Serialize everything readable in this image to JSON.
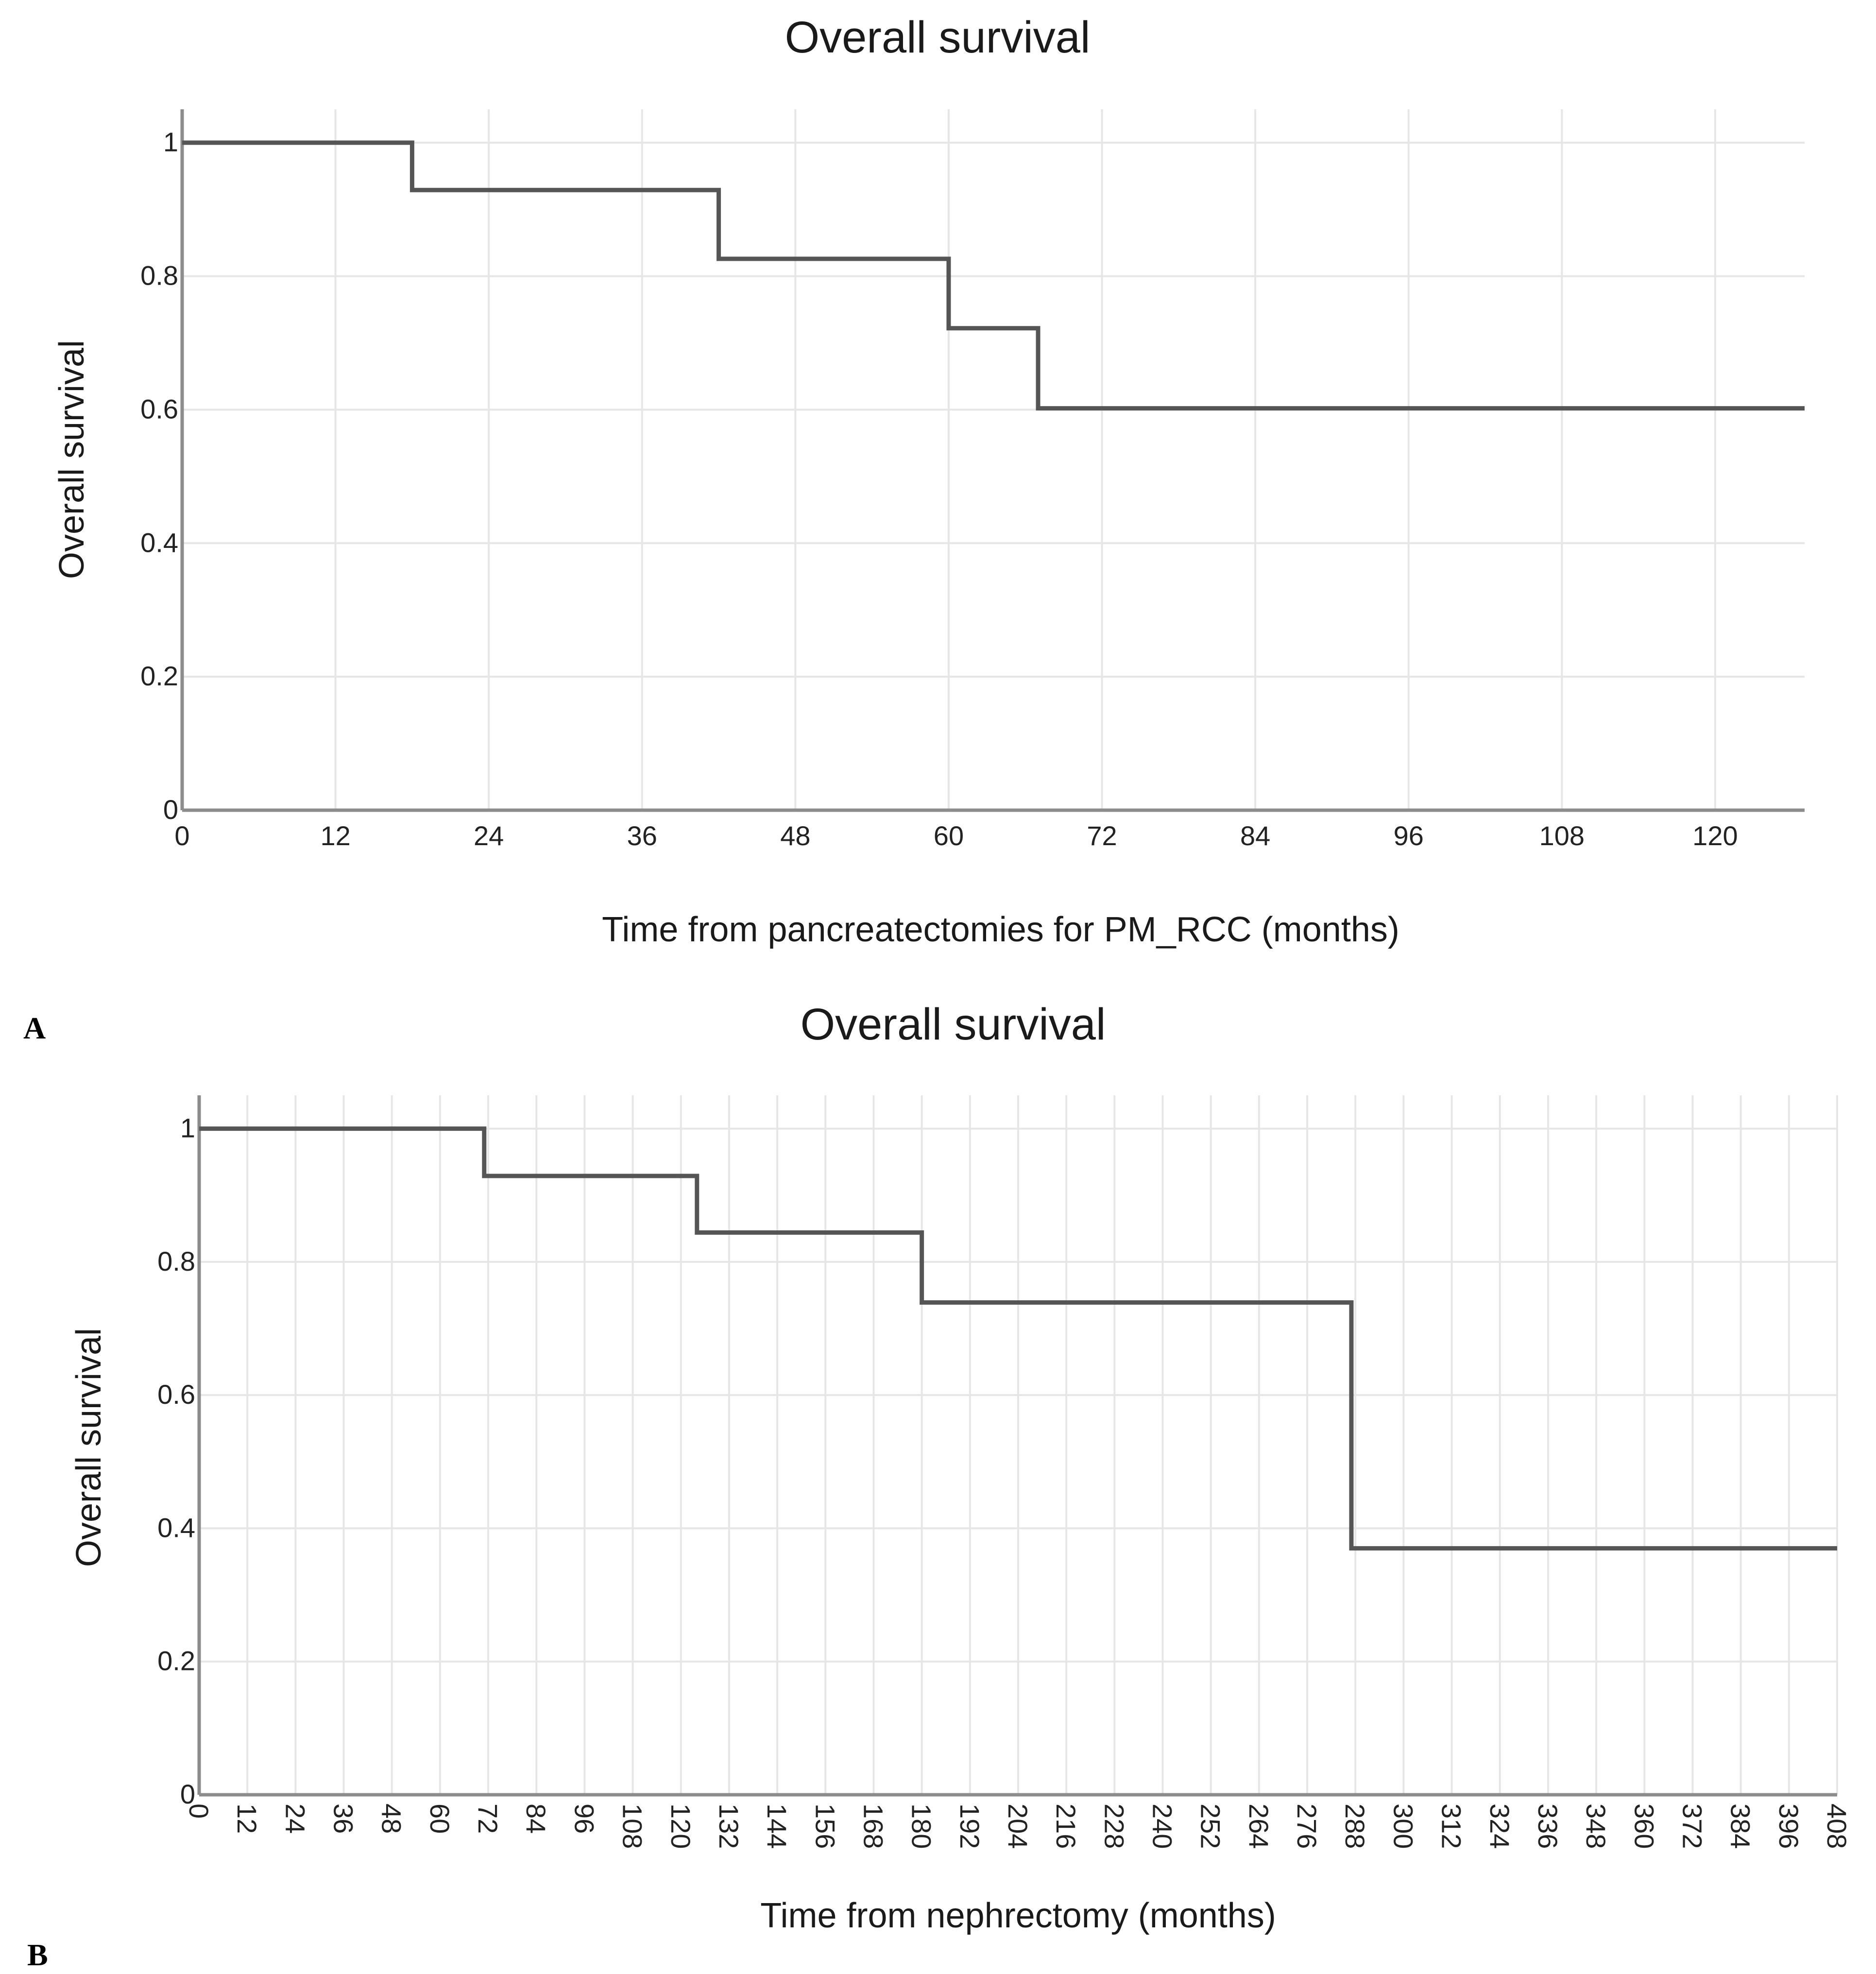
{
  "chart_data": [
    {
      "type": "line",
      "subtype": "kaplan-meier-step",
      "title": "Overall survival",
      "xlabel": "Time from pancreatectomies for PM_RCC (months)",
      "ylabel": "Overall survival",
      "panel_label": "A",
      "xlim": [
        0,
        127
      ],
      "ylim": [
        0,
        1.05
      ],
      "xticks": [
        0,
        12,
        24,
        36,
        48,
        60,
        72,
        84,
        96,
        108,
        120
      ],
      "yticks": [
        0,
        0.2,
        0.4,
        0.6,
        0.8,
        1
      ],
      "ytick_labels": [
        "0",
        "0.2",
        "0.4",
        "0.6",
        "0.8",
        "1"
      ],
      "grid": true,
      "series": [
        {
          "name": "Overall survival",
          "x": [
            0,
            18,
            42,
            60,
            67,
            127
          ],
          "y": [
            1.0,
            0.929,
            0.826,
            0.722,
            0.602,
            0.602
          ]
        }
      ]
    },
    {
      "type": "line",
      "subtype": "kaplan-meier-step",
      "title": "Overall survival",
      "xlabel": "Time from nephrectomy (months)",
      "ylabel": "Overall survival",
      "panel_label": "B",
      "xlim": [
        0,
        408
      ],
      "ylim": [
        0,
        1.05
      ],
      "xticks": [
        0,
        12,
        24,
        36,
        48,
        60,
        72,
        84,
        96,
        108,
        120,
        132,
        144,
        156,
        168,
        180,
        192,
        204,
        216,
        228,
        240,
        252,
        264,
        276,
        288,
        300,
        312,
        324,
        336,
        348,
        360,
        372,
        384,
        396,
        408
      ],
      "yticks": [
        0,
        0.2,
        0.4,
        0.6,
        0.8,
        1
      ],
      "ytick_labels": [
        "0",
        "0.2",
        "0.4",
        "0.6",
        "0.8",
        "1"
      ],
      "grid": true,
      "series": [
        {
          "name": "Overall survival",
          "x": [
            0,
            71,
            124,
            180,
            287,
            408
          ],
          "y": [
            1.0,
            0.929,
            0.844,
            0.739,
            0.37,
            0.37
          ]
        }
      ]
    }
  ],
  "colors": {
    "curve": "#555555",
    "grid": "#e6e6e6",
    "axis": "#8c8c8c"
  }
}
